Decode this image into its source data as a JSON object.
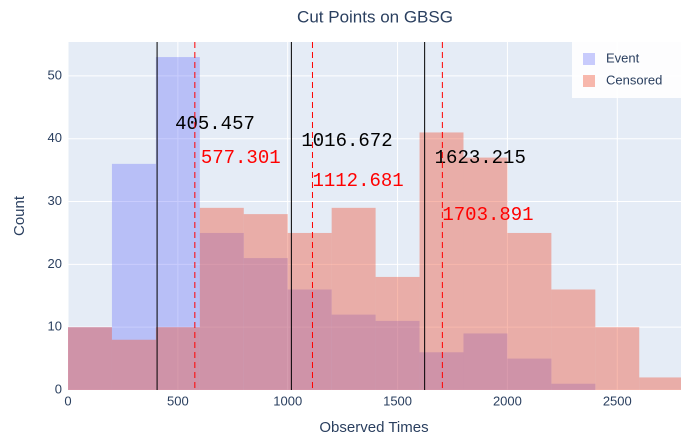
{
  "chart_data": {
    "type": "histogram",
    "title": "Cut Points on GBSG",
    "xlabel": "Observed Times",
    "ylabel": "Count",
    "bins": [
      0,
      200,
      400,
      600,
      800,
      1000,
      1200,
      1400,
      1600,
      1800,
      2000,
      2200,
      2400,
      2600,
      2800
    ],
    "series": [
      {
        "name": "Event",
        "color": "#636efa",
        "values": [
          10,
          36,
          53,
          25,
          21,
          16,
          12,
          11,
          6,
          9,
          5,
          1,
          0,
          0
        ]
      },
      {
        "name": "Censored",
        "color": "#ef553b",
        "values": [
          10,
          8,
          10,
          29,
          28,
          25,
          29,
          18,
          41,
          37,
          25,
          16,
          10,
          2
        ]
      }
    ],
    "cut_lines": [
      {
        "value": 405.457,
        "color": "black",
        "dash": false
      },
      {
        "value": 577.301,
        "color": "red",
        "dash": true
      },
      {
        "value": 1016.672,
        "color": "black",
        "dash": false
      },
      {
        "value": 1112.681,
        "color": "red",
        "dash": true
      },
      {
        "value": 1623.215,
        "color": "black",
        "dash": false
      },
      {
        "value": 1703.891,
        "color": "red",
        "dash": true
      }
    ],
    "xlim": [
      0,
      2790
    ],
    "ylim": [
      0,
      55.4
    ],
    "xticks": [
      0,
      500,
      1000,
      1500,
      2000,
      2500
    ],
    "yticks": [
      0,
      10,
      20,
      30,
      40,
      50
    ],
    "grid": true,
    "legend": "top-right"
  }
}
